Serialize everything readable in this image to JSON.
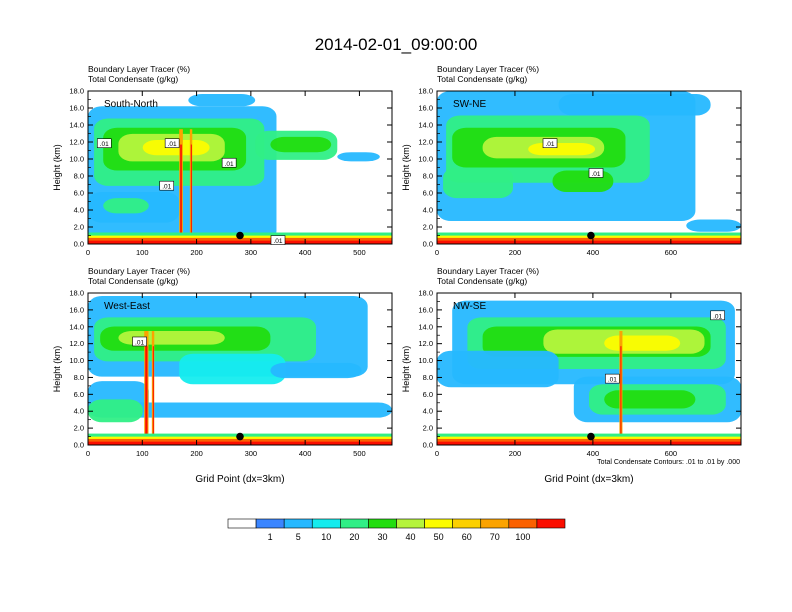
{
  "title": "2014-02-01_09:00:00",
  "panel_caption": {
    "line1": "Boundary Layer Tracer   (%)",
    "line2": "Total Condensate   (g/kg)"
  },
  "contour_note": "Total Condensate Contours: .01 to .01 by .000",
  "colorbar": {
    "colors": [
      "#ffffff",
      "#3a85ff",
      "#26b8ff",
      "#15ecee",
      "#30ef86",
      "#22dd10",
      "#b5f43c",
      "#fcfc00",
      "#fcd000",
      "#fba300",
      "#fb6100",
      "#fb0e00"
    ],
    "labels": [
      "1",
      "5",
      "10",
      "20",
      "30",
      "40",
      "50",
      "60",
      "70",
      "100"
    ]
  },
  "chart_data": [
    {
      "type": "heatmap",
      "panel": "South-North",
      "title": "South-North",
      "xlabel": "",
      "ylabel": "Height (km)",
      "xlim": [
        0,
        560
      ],
      "ylim": [
        0,
        18
      ],
      "xticks": [
        "0",
        "100",
        "200",
        "300",
        "400",
        "500"
      ],
      "xtick_values": [
        0,
        100,
        200,
        300,
        400,
        500
      ],
      "yticks": [
        "0.0",
        "2.0",
        "4.0",
        "6.0",
        "8.0",
        "10.0",
        "12.0",
        "14.0",
        "16.0",
        "18.0"
      ],
      "contour_labels": [
        {
          "text": ".01",
          "x": 30,
          "y": 11.8
        },
        {
          "text": ".01",
          "x": 155,
          "y": 11.8
        },
        {
          "text": ".01",
          "x": 260,
          "y": 9.5
        },
        {
          "text": ".01",
          "x": 145,
          "y": 6.8
        },
        {
          "text": ".01",
          "x": 350,
          "y": 0.4
        }
      ],
      "marker": {
        "x": 280,
        "y": 1.0
      }
    },
    {
      "type": "heatmap",
      "panel": "SW-NE",
      "title": "SW-NE",
      "xlabel": "",
      "ylabel": "Height (km)",
      "xlim": [
        0,
        780
      ],
      "ylim": [
        0,
        18
      ],
      "xticks": [
        "0",
        "200",
        "400",
        "600"
      ],
      "xtick_values": [
        0,
        200,
        400,
        600
      ],
      "yticks": [
        "0.0",
        "2.0",
        "4.0",
        "6.0",
        "8.0",
        "10.0",
        "12.0",
        "14.0",
        "16.0",
        "18.0"
      ],
      "contour_labels": [
        {
          "text": ".01",
          "x": 290,
          "y": 11.8
        },
        {
          "text": ".01",
          "x": 408,
          "y": 8.3
        }
      ],
      "marker": {
        "x": 395,
        "y": 1.0
      }
    },
    {
      "type": "heatmap",
      "panel": "West-East",
      "title": "West-East",
      "xlabel": "Grid Point (dx=3km)",
      "ylabel": "Height (km)",
      "xlim": [
        0,
        560
      ],
      "ylim": [
        0,
        18
      ],
      "xticks": [
        "0",
        "100",
        "200",
        "300",
        "400",
        "500"
      ],
      "xtick_values": [
        0,
        100,
        200,
        300,
        400,
        500
      ],
      "yticks": [
        "0.0",
        "2.0",
        "4.0",
        "6.0",
        "8.0",
        "10.0",
        "12.0",
        "14.0",
        "16.0",
        "18.0"
      ],
      "contour_labels": [
        {
          "text": ".01",
          "x": 95,
          "y": 12.2
        }
      ],
      "marker": {
        "x": 280,
        "y": 1.0
      }
    },
    {
      "type": "heatmap",
      "panel": "NW-SE",
      "title": "NW-SE",
      "xlabel": "Grid Point (dx=3km)",
      "ylabel": "Height (km)",
      "xlim": [
        0,
        780
      ],
      "ylim": [
        0,
        18
      ],
      "xticks": [
        "0",
        "200",
        "400",
        "600"
      ],
      "xtick_values": [
        0,
        200,
        400,
        600
      ],
      "yticks": [
        "0.0",
        "2.0",
        "4.0",
        "6.0",
        "8.0",
        "10.0",
        "12.0",
        "14.0",
        "16.0",
        "18.0"
      ],
      "contour_labels": [
        {
          "text": ".01",
          "x": 450,
          "y": 7.8
        },
        {
          "text": ".01",
          "x": 720,
          "y": 15.3
        }
      ],
      "marker": {
        "x": 395,
        "y": 1.0
      }
    }
  ]
}
